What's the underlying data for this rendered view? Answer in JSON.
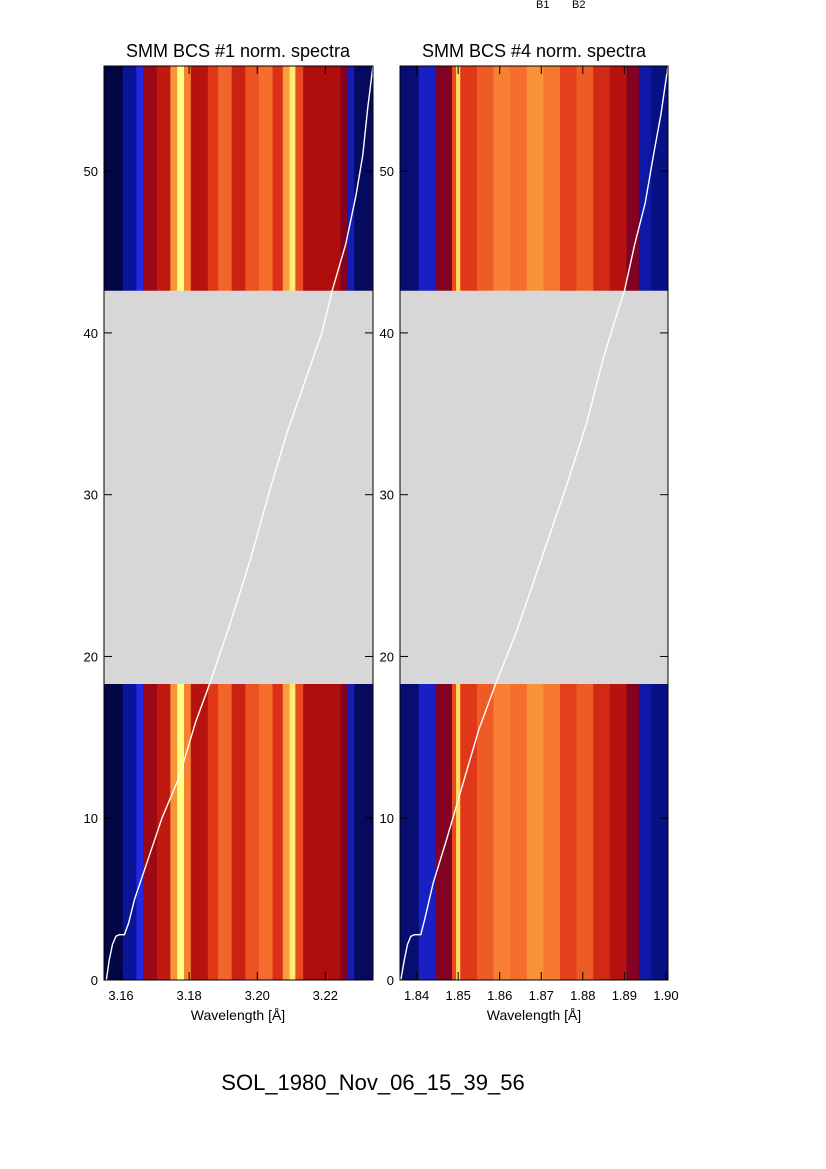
{
  "top_labels": [
    "B1",
    "B2"
  ],
  "footer": "SOL_1980_Nov_06_15_39_56",
  "colors": {
    "gap": "#d7d7d7",
    "curve": "#ffffff"
  },
  "chart_data": [
    {
      "type": "heatmap",
      "title": "SMM BCS #1 norm. spectra",
      "xlabel": "Wavelength [Å]",
      "ylabel": "",
      "xlim": [
        3.155,
        3.234
      ],
      "ylim": [
        0,
        56.5
      ],
      "xticks": [
        3.16,
        3.18,
        3.2,
        3.22
      ],
      "xtick_labels": [
        "3.16",
        "3.18",
        "3.20",
        "3.22"
      ],
      "yticks": [
        0,
        10,
        20,
        30,
        40,
        50
      ],
      "ytick_labels": [
        "0",
        "10",
        "20",
        "30",
        "40",
        "50"
      ],
      "data_gap_y": [
        18.3,
        42.6
      ],
      "colormap": "blue-red-yellow",
      "bands": [
        {
          "x0": 3.155,
          "x1": 3.1605,
          "level": 0.03
        },
        {
          "x0": 3.1605,
          "x1": 3.1645,
          "level": 0.12
        },
        {
          "x0": 3.1645,
          "x1": 3.1665,
          "level": 0.22
        },
        {
          "x0": 3.1665,
          "x1": 3.1705,
          "level": 0.42
        },
        {
          "x0": 3.1705,
          "x1": 3.1745,
          "level": 0.5
        },
        {
          "x0": 3.1745,
          "x1": 3.1765,
          "level": 0.78
        },
        {
          "x0": 3.1765,
          "x1": 3.1785,
          "level": 1.0
        },
        {
          "x0": 3.1785,
          "x1": 3.1805,
          "level": 0.74
        },
        {
          "x0": 3.1805,
          "x1": 3.1855,
          "level": 0.48
        },
        {
          "x0": 3.1855,
          "x1": 3.1885,
          "level": 0.58
        },
        {
          "x0": 3.1885,
          "x1": 3.1925,
          "level": 0.68
        },
        {
          "x0": 3.1925,
          "x1": 3.1965,
          "level": 0.52
        },
        {
          "x0": 3.1965,
          "x1": 3.2005,
          "level": 0.64
        },
        {
          "x0": 3.2005,
          "x1": 3.2045,
          "level": 0.7
        },
        {
          "x0": 3.2045,
          "x1": 3.2075,
          "level": 0.56
        },
        {
          "x0": 3.2075,
          "x1": 3.2095,
          "level": 0.8
        },
        {
          "x0": 3.2095,
          "x1": 3.2112,
          "level": 0.96
        },
        {
          "x0": 3.2112,
          "x1": 3.2135,
          "level": 0.62
        },
        {
          "x0": 3.2135,
          "x1": 3.2245,
          "level": 0.46
        },
        {
          "x0": 3.2245,
          "x1": 3.2265,
          "level": 0.36
        },
        {
          "x0": 3.2265,
          "x1": 3.2285,
          "level": 0.16
        },
        {
          "x0": 3.2285,
          "x1": 3.234,
          "level": 0.06
        }
      ],
      "lightcurve": [
        [
          3.1557,
          0
        ],
        [
          3.1565,
          1.2
        ],
        [
          3.1575,
          2.2
        ],
        [
          3.1585,
          2.7
        ],
        [
          3.1595,
          2.8
        ],
        [
          3.161,
          2.8
        ],
        [
          3.1622,
          3.5
        ],
        [
          3.164,
          5.0
        ],
        [
          3.168,
          7.5
        ],
        [
          3.172,
          10.0
        ],
        [
          3.177,
          12.5
        ],
        [
          3.182,
          16.0
        ],
        [
          3.186,
          18.3
        ],
        [
          3.192,
          22.0
        ],
        [
          3.198,
          26.0
        ],
        [
          3.204,
          30.5
        ],
        [
          3.209,
          34.0
        ],
        [
          3.214,
          37.0
        ],
        [
          3.219,
          40.0
        ],
        [
          3.222,
          42.6
        ],
        [
          3.226,
          45.5
        ],
        [
          3.229,
          48.5
        ],
        [
          3.231,
          51.0
        ],
        [
          3.2325,
          54.0
        ],
        [
          3.234,
          56.5
        ]
      ]
    },
    {
      "type": "heatmap",
      "title": "SMM BCS #4 norm. spectra",
      "xlabel": "Wavelength [Å]",
      "ylabel": "",
      "xlim": [
        1.836,
        1.9005
      ],
      "ylim": [
        0,
        56.5
      ],
      "xticks": [
        1.84,
        1.85,
        1.86,
        1.87,
        1.88,
        1.89,
        1.9
      ],
      "xtick_labels": [
        "1.84",
        "1.85",
        "1.86",
        "1.87",
        "1.88",
        "1.89",
        "1.90"
      ],
      "yticks": [
        0,
        10,
        20,
        30,
        40,
        50
      ],
      "ytick_labels": [
        "0",
        "10",
        "20",
        "30",
        "40",
        "50"
      ],
      "data_gap_y": [
        18.3,
        42.6
      ],
      "colormap": "blue-red-yellow",
      "bands": [
        {
          "x0": 1.836,
          "x1": 1.8405,
          "level": 0.08
        },
        {
          "x0": 1.8405,
          "x1": 1.8445,
          "level": 0.18
        },
        {
          "x0": 1.8445,
          "x1": 1.8485,
          "level": 0.36
        },
        {
          "x0": 1.8485,
          "x1": 1.8495,
          "level": 0.62
        },
        {
          "x0": 1.8495,
          "x1": 1.8505,
          "level": 0.92
        },
        {
          "x0": 1.8505,
          "x1": 1.8545,
          "level": 0.58
        },
        {
          "x0": 1.8545,
          "x1": 1.8585,
          "level": 0.66
        },
        {
          "x0": 1.8585,
          "x1": 1.8625,
          "level": 0.74
        },
        {
          "x0": 1.8625,
          "x1": 1.8665,
          "level": 0.7
        },
        {
          "x0": 1.8665,
          "x1": 1.8705,
          "level": 0.78
        },
        {
          "x0": 1.8705,
          "x1": 1.8745,
          "level": 0.72
        },
        {
          "x0": 1.8745,
          "x1": 1.8785,
          "level": 0.6
        },
        {
          "x0": 1.8785,
          "x1": 1.8825,
          "level": 0.66
        },
        {
          "x0": 1.8825,
          "x1": 1.8865,
          "level": 0.54
        },
        {
          "x0": 1.8865,
          "x1": 1.8905,
          "level": 0.48
        },
        {
          "x0": 1.8905,
          "x1": 1.8935,
          "level": 0.36
        },
        {
          "x0": 1.8935,
          "x1": 1.8965,
          "level": 0.14
        },
        {
          "x0": 1.8965,
          "x1": 1.9005,
          "level": 0.1
        }
      ],
      "lightcurve": [
        [
          1.8362,
          0
        ],
        [
          1.837,
          1.2
        ],
        [
          1.8378,
          2.2
        ],
        [
          1.8386,
          2.7
        ],
        [
          1.8395,
          2.8
        ],
        [
          1.841,
          2.8
        ],
        [
          1.842,
          3.8
        ],
        [
          1.844,
          6.0
        ],
        [
          1.847,
          8.5
        ],
        [
          1.851,
          12.0
        ],
        [
          1.855,
          15.5
        ],
        [
          1.859,
          18.3
        ],
        [
          1.864,
          21.5
        ],
        [
          1.87,
          26.0
        ],
        [
          1.876,
          30.5
        ],
        [
          1.881,
          34.5
        ],
        [
          1.885,
          38.5
        ],
        [
          1.888,
          41.0
        ],
        [
          1.89,
          42.6
        ],
        [
          1.8925,
          45.5
        ],
        [
          1.895,
          48.0
        ],
        [
          1.897,
          51.0
        ],
        [
          1.8988,
          53.5
        ],
        [
          1.9005,
          56.5
        ]
      ]
    }
  ]
}
